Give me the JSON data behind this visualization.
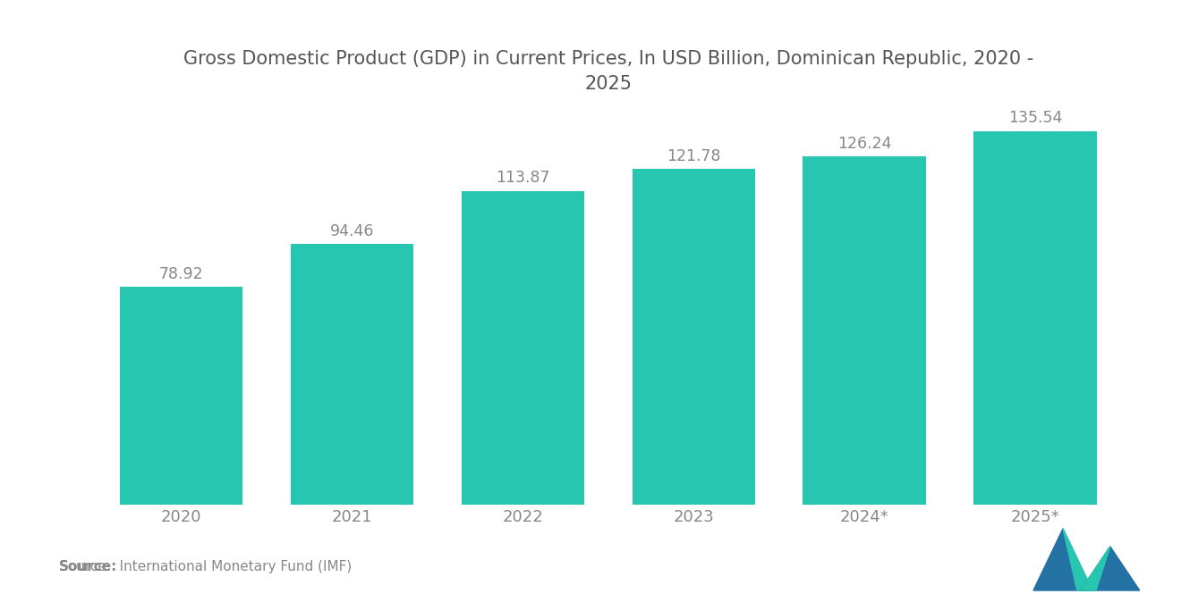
{
  "title": "Gross Domestic Product (GDP) in Current Prices, In USD Billion, Dominican Republic, 2020 -\n2025",
  "categories": [
    "2020",
    "2021",
    "2022",
    "2023",
    "2024*",
    "2025*"
  ],
  "values": [
    78.92,
    94.46,
    113.87,
    121.78,
    126.24,
    135.54
  ],
  "bar_color": "#26C6B0",
  "background_color": "#ffffff",
  "label_color": "#888888",
  "title_color": "#555555",
  "source_bold": "Source:",
  "source_normal": "  International Monetary Fund (IMF)",
  "ylim": [
    0,
    155
  ],
  "bar_width": 0.72,
  "title_fontsize": 15,
  "label_fontsize": 12.5,
  "tick_fontsize": 13,
  "source_fontsize": 11,
  "logo_dark": "#2471A3",
  "logo_teal": "#26C6B0"
}
